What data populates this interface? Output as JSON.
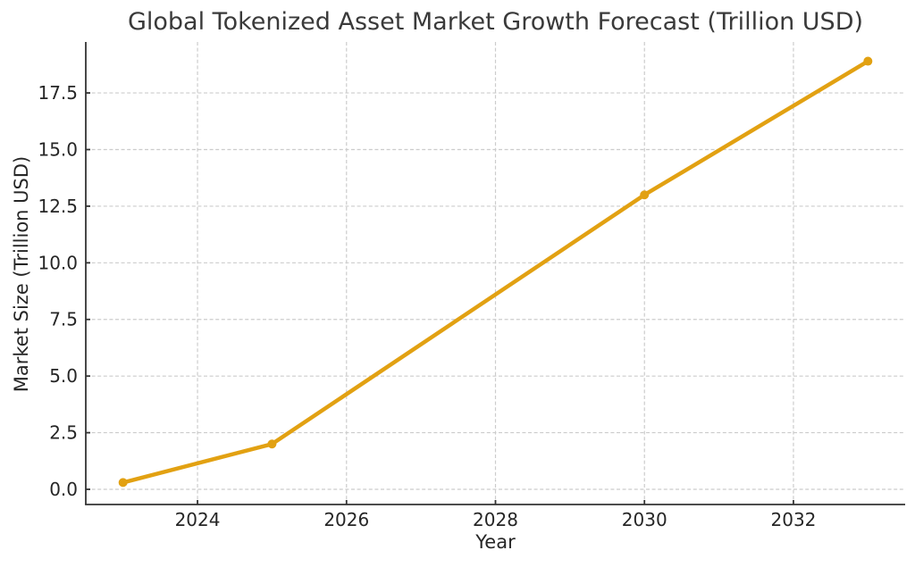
{
  "chart_data": {
    "type": "line",
    "title": "Global Tokenized Asset Market Growth Forecast (Trillion USD)",
    "xlabel": "Year",
    "ylabel": "Market Size (Trillion USD)",
    "x": [
      2023,
      2025,
      2030,
      2033
    ],
    "y": [
      0.3,
      2.0,
      13.0,
      18.9
    ],
    "series": [
      {
        "name": "Market Size",
        "x": [
          2023,
          2025,
          2030,
          2033
        ],
        "values": [
          0.3,
          2.0,
          13.0,
          18.9
        ]
      }
    ],
    "xlim": [
      2022.5,
      2033.5
    ],
    "ylim": [
      -0.67,
      19.75
    ],
    "xticks": [
      2024,
      2026,
      2028,
      2030,
      2032
    ],
    "xtick_labels": [
      "2024",
      "2026",
      "2028",
      "2030",
      "2032"
    ],
    "yticks": [
      0.0,
      2.5,
      5.0,
      7.5,
      10.0,
      12.5,
      15.0,
      17.5
    ],
    "ytick_labels": [
      "0.0",
      "2.5",
      "5.0",
      "7.5",
      "10.0",
      "12.5",
      "15.0",
      "17.5"
    ],
    "grid": true,
    "grid_style": "dashed",
    "legend": "none",
    "marker": "circle",
    "line_color": "#E2A112",
    "marker_color": "#E2A112",
    "grid_color": "#cccccc",
    "spine_color": "#333333",
    "text_color": "#262626",
    "title_color": "#3a3a3a",
    "background_color": "#ffffff"
  }
}
